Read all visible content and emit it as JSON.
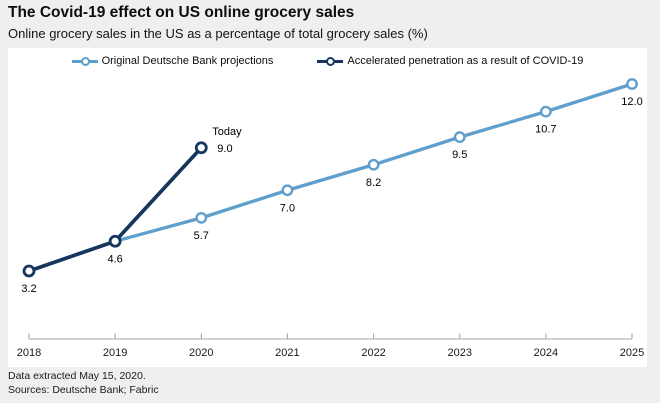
{
  "header": {
    "title": "The Covid-19 effect on US online grocery sales",
    "subtitle": "Online grocery sales in the US as a percentage of total grocery sales (%)"
  },
  "legend": {
    "items": [
      {
        "label": "Original Deutsche Bank projections",
        "color": "#5f9fcd"
      },
      {
        "label": "Accelerated penetration as a result of COVID-19",
        "color": "#17365d"
      }
    ]
  },
  "chart_data": {
    "type": "line",
    "title": "The Covid-19 effect on US online grocery sales",
    "subtitle": "Online grocery sales in the US as a percentage of total grocery sales (%)",
    "xticks": [
      "2018",
      "2019",
      "2020",
      "2021",
      "2022",
      "2023",
      "2024",
      "2025"
    ],
    "xlim": [
      2018,
      2025
    ],
    "ylim": [
      3.2,
      12.0
    ],
    "grid": false,
    "legend_position": "top",
    "data_labels": true,
    "series": [
      {
        "name": "Original Deutsche Bank projections",
        "color": "#5f9fcd",
        "x": [
          2018,
          2019,
          2020,
          2021,
          2022,
          2023,
          2024,
          2025
        ],
        "values": [
          3.2,
          4.6,
          5.7,
          7.0,
          8.2,
          9.5,
          10.7,
          12.0
        ]
      },
      {
        "name": "Accelerated penetration as a result of COVID-19",
        "color": "#17365d",
        "x": [
          2018,
          2019,
          2020
        ],
        "values": [
          3.2,
          4.6,
          9.0
        ]
      }
    ],
    "annotation": {
      "text": "Today",
      "x": 2020,
      "value": 9.0
    }
  },
  "footer": {
    "line1": "Data extracted May 15, 2020.",
    "line2": "Sources: Deutsche Bank; Fabric"
  }
}
